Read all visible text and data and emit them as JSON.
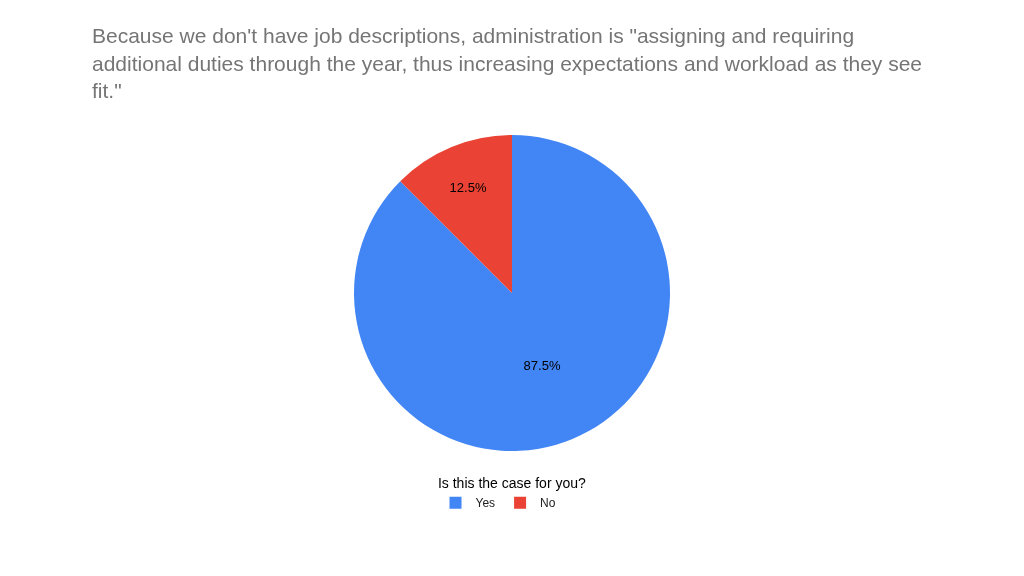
{
  "chart_data": {
    "type": "pie",
    "title": "Because we don't have job descriptions, administration is \"assigning and requiring additional duties through the year, thus increasing expectations and workload as they see fit.\"",
    "legend_title": "Is this the case for you?",
    "categories": [
      "Yes",
      "No"
    ],
    "values": [
      87.5,
      12.5
    ],
    "colors": [
      "#4285f4",
      "#ea4335"
    ],
    "value_labels": [
      "87.5%",
      "12.5%"
    ],
    "legend": "bottom"
  }
}
